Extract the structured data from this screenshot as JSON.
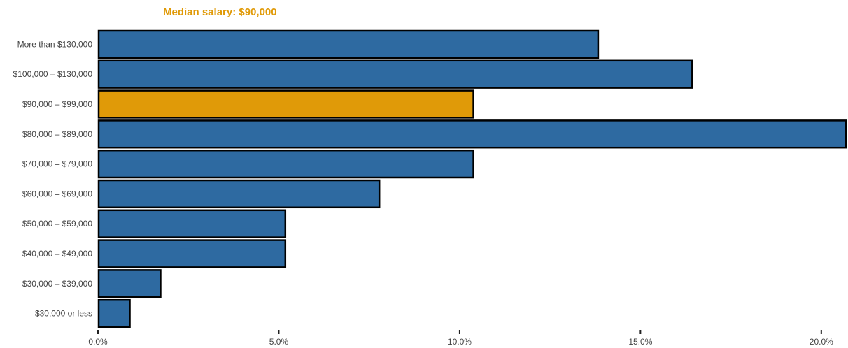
{
  "chart_data": {
    "type": "bar",
    "orientation": "horizontal",
    "title": "Median salary: $90,000",
    "xlabel": "",
    "ylabel": "",
    "categories": [
      "$30,000 or less",
      "$30,000 – $39,000",
      "$40,000 – $49,000",
      "$50,000 – $59,000",
      "$60,000 – $69,000",
      "$70,000 – $79,000",
      "$80,000 – $89,000",
      "$90,000 – $99,000",
      "$100,000 – $130,000",
      "More than $130,000"
    ],
    "values": [
      0.9,
      1.75,
      5.2,
      5.2,
      7.8,
      10.4,
      20.7,
      10.4,
      16.45,
      13.85
    ],
    "highlight_category": "$90,000 – $99,000",
    "xlim": [
      0,
      20.7
    ],
    "xticks": [
      0,
      5,
      10,
      15,
      20
    ],
    "xtick_labels": [
      "0.0%",
      "5.0%",
      "10.0%",
      "15.0%",
      "20.0%"
    ],
    "grid": false,
    "colors": {
      "bar": "#2e6aa1",
      "highlight": "#e09a08",
      "bar_outline": "#000000",
      "title": "#e09a08"
    }
  }
}
